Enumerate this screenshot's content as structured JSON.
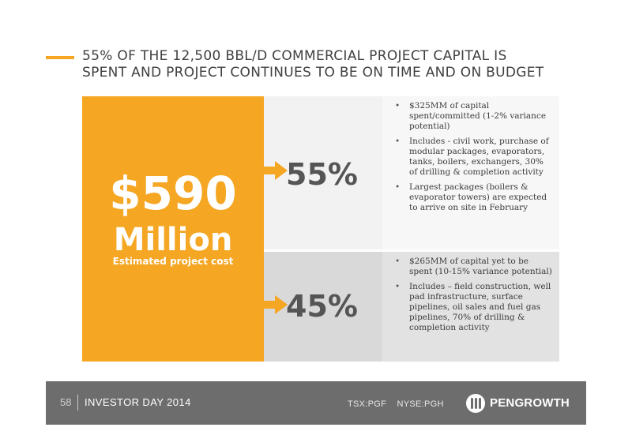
{
  "slide": {
    "title_lines": [
      "55% OF THE 12,500 BBL/D COMMERCIAL PROJECT CAPITAL IS",
      "SPENT AND PROJECT CONTINUES TO BE ON TIME AND ON BUDGET"
    ]
  },
  "cost": {
    "amount": "$590",
    "unit": "Million",
    "caption": "Estimated project cost"
  },
  "rows": [
    {
      "percent": "55%",
      "bullets": [
        "$325MM of capital spent/committed (1-2% variance potential)",
        "Includes -  civil work, purchase of  modular packages, evaporators, tanks, boilers, exchangers, 30% of drilling & completion activity",
        "Largest packages (boilers & evaporator towers) are expected to arrive on site in February"
      ]
    },
    {
      "percent": "45%",
      "bullets": [
        "$265MM of capital yet to be spent (10-15% variance potential)",
        "Includes – field construction, well pad infrastructure, surface pipelines, oil sales and fuel gas pipelines, 70% of drilling & completion activity"
      ]
    }
  ],
  "footer": {
    "page_number": "58",
    "event": "INVESTOR DAY 2014",
    "tickers": [
      "TSX:PGF",
      "NYSE:PGH"
    ],
    "logo_text": "PENGROWTH"
  },
  "colors": {
    "accent": "#f5a623",
    "footer_bg": "#6d6d6d"
  }
}
